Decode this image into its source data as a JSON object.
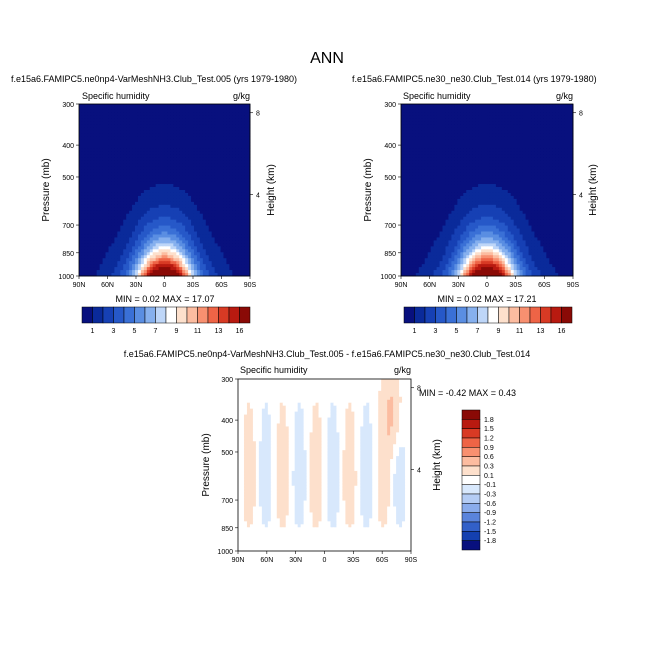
{
  "page_title": "ANN",
  "chart_data": [
    {
      "type": "heatmap",
      "title": "f.e15a6.FAMIPC5.ne0np4-VarMeshNH3.Club_Test.005 (yrs 1979-1980)",
      "left_string": "Specific humidity",
      "right_string": "g/kg",
      "xlabel": "",
      "ylabel": "Pressure (mb)",
      "ylabel_right": "Height (km)",
      "x_ticks": [
        "90N",
        "60N",
        "30N",
        "0",
        "30S",
        "60S",
        "90S"
      ],
      "y_ticks": [
        "300",
        "400",
        "500",
        "700",
        "850",
        "1000"
      ],
      "right_ticks": [
        "8",
        "4"
      ],
      "xlim": [
        90,
        -90
      ],
      "ylim": [
        1000,
        300
      ],
      "stats": "MIN =  0.02  MAX =  17.07",
      "levels": [
        1,
        2,
        3,
        4,
        5,
        6,
        7,
        8,
        9,
        10,
        11,
        12,
        13,
        14,
        16
      ],
      "colorbar_labels": [
        "1",
        "3",
        "5",
        "7",
        "9",
        "11",
        "13",
        "16"
      ]
    },
    {
      "type": "heatmap",
      "title": "f.e15a6.FAMIPC5.ne30_ne30.Club_Test.014 (yrs 1979-1980)",
      "left_string": "Specific humidity",
      "right_string": "g/kg",
      "xlabel": "",
      "ylabel": "Pressure (mb)",
      "ylabel_right": "Height (km)",
      "x_ticks": [
        "90N",
        "60N",
        "30N",
        "0",
        "30S",
        "60S",
        "90S"
      ],
      "y_ticks": [
        "300",
        "400",
        "500",
        "700",
        "850",
        "1000"
      ],
      "right_ticks": [
        "8",
        "4"
      ],
      "xlim": [
        90,
        -90
      ],
      "ylim": [
        1000,
        300
      ],
      "stats": "MIN =  0.02  MAX =  17.21",
      "levels": [
        1,
        2,
        3,
        4,
        5,
        6,
        7,
        8,
        9,
        10,
        11,
        12,
        13,
        14,
        16
      ],
      "colorbar_labels": [
        "1",
        "3",
        "5",
        "7",
        "9",
        "11",
        "13",
        "16"
      ]
    },
    {
      "type": "heatmap",
      "title": "f.e15a6.FAMIPC5.ne0np4-VarMeshNH3.Club_Test.005 - f.e15a6.FAMIPC5.ne30_ne30.Club_Test.014",
      "left_string": "Specific humidity",
      "right_string": "g/kg",
      "xlabel": "",
      "ylabel": "Pressure (mb)",
      "ylabel_right": "Height (km)",
      "x_ticks": [
        "90N",
        "60N",
        "30N",
        "0",
        "30S",
        "60S",
        "90S"
      ],
      "y_ticks": [
        "300",
        "400",
        "500",
        "700",
        "850",
        "1000"
      ],
      "right_ticks": [
        "8",
        "4"
      ],
      "xlim": [
        90,
        -90
      ],
      "ylim": [
        1000,
        300
      ],
      "stats": "MIN = -0.42  MAX =  0.43",
      "levels": [
        -1.8,
        -1.5,
        -1.2,
        -0.9,
        -0.6,
        -0.3,
        -0.1,
        0.1,
        0.3,
        0.6,
        0.9,
        1.2,
        1.5,
        1.8
      ],
      "colorbar_labels": [
        "1.8",
        "1.5",
        "1.2",
        "0.9",
        "0.6",
        "0.3",
        "0.1",
        "-0.1",
        "-0.3",
        "-0.6",
        "-0.9",
        "-1.2",
        "-1.5",
        "-1.8"
      ]
    }
  ],
  "colors": {
    "humidity_scale": [
      "#08107e",
      "#0a2a9a",
      "#1640b4",
      "#2658c8",
      "#3a70d6",
      "#5a8ee2",
      "#86b0ee",
      "#bed6f8",
      "#ffffff",
      "#fde0cc",
      "#fcbca0",
      "#f89070",
      "#ee6446",
      "#d83a24",
      "#b81a10",
      "#8a0a06"
    ],
    "difference_scale": [
      "#8a0a06",
      "#b81a10",
      "#d83a24",
      "#ee6446",
      "#f89070",
      "#fcbca0",
      "#fde0cc",
      "#ffffff",
      "#d8e8fc",
      "#b4ccf4",
      "#8aacec",
      "#5a84dc",
      "#3260c8",
      "#1440b0",
      "#08107e"
    ],
    "diff_background": "#d8e8fc",
    "diff_positive": "#fde0cc",
    "diff_negative": "#b4ccf4"
  }
}
